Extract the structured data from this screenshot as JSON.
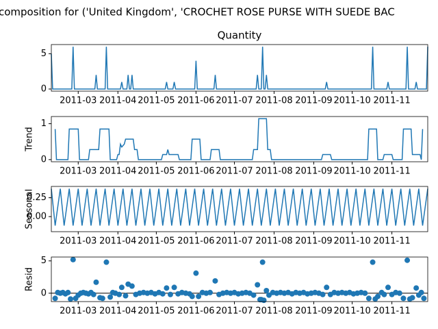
{
  "title": "composition for ('United Kingdom', 'CROCHET ROSE PURSE WITH SUEDE BAC",
  "chart_data": [
    {
      "type": "line",
      "title": "Quantity",
      "color": "#1f77b4",
      "x": [
        "2011-02-08",
        "2011-02-09",
        "2011-02-24",
        "2011-02-25",
        "2011-02-26",
        "2011-03-14",
        "2011-03-15",
        "2011-03-16",
        "2011-03-22",
        "2011-03-23",
        "2011-03-24",
        "2011-04-03",
        "2011-04-04",
        "2011-04-05",
        "2011-04-08",
        "2011-04-09",
        "2011-04-10",
        "2011-04-11",
        "2011-04-12",
        "2011-04-13",
        "2011-05-08",
        "2011-05-09",
        "2011-05-10",
        "2011-05-14",
        "2011-05-15",
        "2011-05-16",
        "2011-05-31",
        "2011-06-01",
        "2011-06-02",
        "2011-06-15",
        "2011-06-16",
        "2011-06-17",
        "2011-07-18",
        "2011-07-19",
        "2011-07-20",
        "2011-07-22",
        "2011-07-23",
        "2011-07-24",
        "2011-07-25",
        "2011-07-26",
        "2011-07-27",
        "2011-09-10",
        "2011-09-11",
        "2011-09-12",
        "2011-10-16",
        "2011-10-17",
        "2011-10-18",
        "2011-10-28",
        "2011-10-29",
        "2011-10-30",
        "2011-11-12",
        "2011-11-13",
        "2011-11-14",
        "2011-11-19",
        "2011-11-20",
        "2011-11-21",
        "2011-11-28",
        "2011-11-29"
      ],
      "values": [
        5,
        0,
        0,
        6,
        0,
        0,
        2,
        0,
        0,
        6,
        0,
        0,
        1,
        0,
        0,
        2,
        0,
        0,
        2,
        0,
        0,
        1,
        0,
        0,
        1,
        0,
        0,
        4,
        0,
        0,
        2,
        0,
        0,
        2,
        0,
        0,
        6,
        0,
        0,
        2,
        0,
        0,
        1,
        0,
        0,
        6,
        0,
        0,
        1,
        0,
        0,
        6,
        0,
        0,
        1,
        0,
        0,
        6
      ],
      "xlim": [
        "2011-02-08",
        "2011-11-29"
      ],
      "xticks": [
        {
          "value": "2011-03-01",
          "label": "2011-03"
        },
        {
          "value": "2011-04-01",
          "label": "2011-04"
        },
        {
          "value": "2011-05-01",
          "label": "2011-05"
        },
        {
          "value": "2011-06-01",
          "label": "2011-06"
        },
        {
          "value": "2011-07-01",
          "label": "2011-07"
        },
        {
          "value": "2011-08-01",
          "label": "2011-08"
        },
        {
          "value": "2011-09-01",
          "label": "2011-09"
        },
        {
          "value": "2011-10-01",
          "label": "2011-10"
        },
        {
          "value": "2011-11-01",
          "label": "2011-11"
        }
      ],
      "ylim": [
        -0.3,
        6.3
      ],
      "yticks": [
        0,
        5
      ]
    },
    {
      "type": "line",
      "ylabel": "Trend",
      "color": "#1f77b4",
      "x": [
        "2011-02-11",
        "2011-02-12",
        "2011-02-21",
        "2011-02-22",
        "2011-03-01",
        "2011-03-02",
        "2011-03-09",
        "2011-03-10",
        "2011-03-17",
        "2011-03-18",
        "2011-03-25",
        "2011-03-26",
        "2011-03-31",
        "2011-04-01",
        "2011-04-02",
        "2011-04-03",
        "2011-04-04",
        "2011-04-06",
        "2011-04-07",
        "2011-04-13",
        "2011-04-14",
        "2011-04-16",
        "2011-04-17",
        "2011-05-05",
        "2011-05-06",
        "2011-05-09",
        "2011-05-10",
        "2011-05-11",
        "2011-05-18",
        "2011-05-19",
        "2011-05-28",
        "2011-05-29",
        "2011-06-04",
        "2011-06-05",
        "2011-06-12",
        "2011-06-13",
        "2011-06-19",
        "2011-06-20",
        "2011-07-15",
        "2011-07-16",
        "2011-07-19",
        "2011-07-20",
        "2011-07-26",
        "2011-07-27",
        "2011-07-29",
        "2011-07-30",
        "2011-09-07",
        "2011-09-08",
        "2011-09-14",
        "2011-09-15",
        "2011-10-13",
        "2011-10-14",
        "2011-10-20",
        "2011-10-21",
        "2011-10-25",
        "2011-10-26",
        "2011-11-01",
        "2011-11-02",
        "2011-11-09",
        "2011-11-10",
        "2011-11-16",
        "2011-11-17",
        "2011-11-23",
        "2011-11-24",
        "2011-11-25"
      ],
      "values": [
        0.85,
        0,
        0,
        0.85,
        0.85,
        0,
        0,
        0.28,
        0.28,
        0.85,
        0.85,
        0,
        0,
        0.14,
        0.14,
        0.43,
        0.35,
        0.43,
        0.57,
        0.57,
        0.28,
        0.28,
        0,
        0,
        0.14,
        0.14,
        0.28,
        0.14,
        0.14,
        0,
        0,
        0.57,
        0.57,
        0,
        0,
        0.28,
        0.28,
        0,
        0,
        0.28,
        0.28,
        1.14,
        1.14,
        0.28,
        0.28,
        0,
        0,
        0.14,
        0.14,
        0,
        0,
        0.85,
        0.85,
        0,
        0,
        0.14,
        0.14,
        0,
        0,
        0.85,
        0.85,
        0.14,
        0.14,
        0,
        0.85
      ],
      "xlim": [
        "2011-02-08",
        "2011-11-29"
      ],
      "xticks": [
        {
          "value": "2011-03-01",
          "label": "2011-03"
        },
        {
          "value": "2011-04-01",
          "label": "2011-04"
        },
        {
          "value": "2011-05-01",
          "label": "2011-05"
        },
        {
          "value": "2011-06-01",
          "label": "2011-06"
        },
        {
          "value": "2011-07-01",
          "label": "2011-07"
        },
        {
          "value": "2011-08-01",
          "label": "2011-08"
        },
        {
          "value": "2011-09-01",
          "label": "2011-09"
        },
        {
          "value": "2011-10-01",
          "label": "2011-10"
        },
        {
          "value": "2011-11-01",
          "label": "2011-11"
        }
      ],
      "ylim": [
        -0.06,
        1.2
      ],
      "yticks": [
        0,
        1
      ]
    },
    {
      "type": "line",
      "ylabel": "Seasonal",
      "color": "#1f77b4",
      "x": [
        "2011-02-08",
        "2011-02-11",
        "2011-02-15",
        "2011-02-18",
        "2011-02-22",
        "2011-02-25",
        "2011-03-01",
        "2011-03-04",
        "2011-03-08",
        "2011-03-11",
        "2011-03-15",
        "2011-03-18",
        "2011-03-22",
        "2011-03-25",
        "2011-03-29",
        "2011-04-01",
        "2011-04-05",
        "2011-04-08",
        "2011-04-12",
        "2011-04-15",
        "2011-04-19",
        "2011-04-22",
        "2011-04-26",
        "2011-04-29",
        "2011-05-03",
        "2011-05-06",
        "2011-05-10",
        "2011-05-13",
        "2011-05-17",
        "2011-05-20",
        "2011-05-24",
        "2011-05-27",
        "2011-05-31",
        "2011-06-03",
        "2011-06-07",
        "2011-06-10",
        "2011-06-14",
        "2011-06-17",
        "2011-06-21",
        "2011-06-24",
        "2011-06-28",
        "2011-07-01",
        "2011-07-05",
        "2011-07-08",
        "2011-07-12",
        "2011-07-15",
        "2011-07-19",
        "2011-07-22",
        "2011-07-26",
        "2011-07-29",
        "2011-08-02",
        "2011-08-05",
        "2011-08-09",
        "2011-08-12",
        "2011-08-16",
        "2011-08-19",
        "2011-08-23",
        "2011-08-26",
        "2011-08-30",
        "2011-09-02",
        "2011-09-06",
        "2011-09-09",
        "2011-09-13",
        "2011-09-16",
        "2011-09-20",
        "2011-09-23",
        "2011-09-27",
        "2011-09-30",
        "2011-10-04",
        "2011-10-07",
        "2011-10-11",
        "2011-10-14",
        "2011-10-18",
        "2011-10-21",
        "2011-10-25",
        "2011-10-28",
        "2011-11-01",
        "2011-11-04",
        "2011-11-08",
        "2011-11-11",
        "2011-11-15",
        "2011-11-18",
        "2011-11-22",
        "2011-11-25",
        "2011-11-29"
      ],
      "values": [
        0.37,
        -0.12,
        0.37,
        -0.12,
        0.37,
        -0.12,
        0.37,
        -0.12,
        0.37,
        -0.12,
        0.37,
        -0.12,
        0.37,
        -0.12,
        0.37,
        -0.12,
        0.37,
        -0.12,
        0.37,
        -0.12,
        0.37,
        -0.12,
        0.37,
        -0.12,
        0.37,
        -0.12,
        0.37,
        -0.12,
        0.37,
        -0.12,
        0.37,
        -0.12,
        0.37,
        -0.12,
        0.37,
        -0.12,
        0.37,
        -0.12,
        0.37,
        -0.12,
        0.37,
        -0.12,
        0.37,
        -0.12,
        0.37,
        -0.12,
        0.37,
        -0.12,
        0.37,
        -0.12,
        0.37,
        -0.12,
        0.37,
        -0.12,
        0.37,
        -0.12,
        0.37,
        -0.12,
        0.37,
        -0.12,
        0.37,
        -0.12,
        0.37,
        -0.12,
        0.37,
        -0.12,
        0.37,
        -0.12,
        0.37,
        -0.12,
        0.37,
        -0.12,
        0.37,
        -0.12,
        0.37,
        -0.12,
        0.37,
        -0.12,
        0.37,
        -0.12,
        0.37,
        -0.12,
        0.37,
        -0.12,
        0.37
      ],
      "xlim": [
        "2011-02-08",
        "2011-11-29"
      ],
      "xticks": [
        {
          "value": "2011-03-01",
          "label": "2011-03"
        },
        {
          "value": "2011-04-01",
          "label": "2011-04"
        },
        {
          "value": "2011-05-01",
          "label": "2011-05"
        },
        {
          "value": "2011-06-01",
          "label": "2011-06"
        },
        {
          "value": "2011-07-01",
          "label": "2011-07"
        },
        {
          "value": "2011-08-01",
          "label": "2011-08"
        },
        {
          "value": "2011-09-01",
          "label": "2011-09"
        },
        {
          "value": "2011-10-01",
          "label": "2011-10"
        },
        {
          "value": "2011-11-01",
          "label": "2011-11"
        }
      ],
      "ylim": [
        -0.2,
        0.4
      ],
      "yticks": [
        {
          "value": 0,
          "label": "0.00"
        },
        {
          "value": 0.25,
          "label": "0.25"
        }
      ]
    },
    {
      "type": "scatter",
      "ylabel": "Resid",
      "color": "#1f77b4",
      "x": [
        "2011-02-11",
        "2011-02-13",
        "2011-02-15",
        "2011-02-17",
        "2011-02-19",
        "2011-02-21",
        "2011-02-23",
        "2011-02-27",
        "2011-03-01",
        "2011-03-03",
        "2011-03-05",
        "2011-03-07",
        "2011-03-09",
        "2011-03-11",
        "2011-03-13",
        "2011-03-18",
        "2011-03-20",
        "2011-03-26",
        "2011-03-28",
        "2011-03-30",
        "2011-04-02",
        "2011-04-07",
        "2011-04-15",
        "2011-04-18",
        "2011-04-21",
        "2011-04-24",
        "2011-04-27",
        "2011-04-30",
        "2011-05-03",
        "2011-05-06",
        "2011-05-12",
        "2011-05-18",
        "2011-05-21",
        "2011-05-24",
        "2011-05-27",
        "2011-05-29",
        "2011-06-03",
        "2011-06-06",
        "2011-06-09",
        "2011-06-12",
        "2011-06-19",
        "2011-06-22",
        "2011-06-25",
        "2011-06-28",
        "2011-07-01",
        "2011-07-04",
        "2011-07-07",
        "2011-07-10",
        "2011-07-13",
        "2011-07-16",
        "2011-07-21",
        "2011-07-22",
        "2011-07-24",
        "2011-07-28",
        "2011-07-31",
        "2011-08-03",
        "2011-08-06",
        "2011-08-09",
        "2011-08-12",
        "2011-08-15",
        "2011-08-18",
        "2011-08-21",
        "2011-08-24",
        "2011-08-27",
        "2011-08-30",
        "2011-09-02",
        "2011-09-05",
        "2011-09-08",
        "2011-09-14",
        "2011-09-17",
        "2011-09-20",
        "2011-09-23",
        "2011-09-26",
        "2011-09-29",
        "2011-10-02",
        "2011-10-05",
        "2011-10-08",
        "2011-10-11",
        "2011-10-14",
        "2011-10-19",
        "2011-10-21",
        "2011-10-24",
        "2011-10-26",
        "2011-11-01",
        "2011-11-04",
        "2011-11-07",
        "2011-11-10",
        "2011-11-15",
        "2011-11-17",
        "2011-11-22",
        "2011-11-24",
        "2011-11-26",
        "2011-02-25",
        "2011-03-15",
        "2011-03-23",
        "2011-04-04",
        "2011-04-09",
        "2011-04-12",
        "2011-05-09",
        "2011-05-15",
        "2011-06-01",
        "2011-06-16",
        "2011-07-19",
        "2011-07-23",
        "2011-07-26",
        "2011-09-11",
        "2011-10-17",
        "2011-10-29",
        "2011-11-13",
        "2011-11-20"
      ],
      "values": [
        -0.8,
        0.1,
        0,
        0.1,
        -0.1,
        0.1,
        -0.9,
        -0.8,
        -0.3,
        0,
        0.1,
        0,
        -0.1,
        0.1,
        -0.2,
        -0.7,
        -0.8,
        -0.6,
        0.1,
        0,
        -0.2,
        -0.4,
        -0.2,
        0,
        0.1,
        0,
        0.1,
        -0.1,
        0.1,
        -0.1,
        -0.2,
        -0.1,
        0.1,
        0,
        -0.1,
        -0.5,
        -0.5,
        0.1,
        0,
        0.1,
        -0.2,
        0,
        0.1,
        0,
        0.1,
        -0.1,
        0,
        0.1,
        0,
        -0.3,
        -1.0,
        -1.0,
        -1.1,
        -0.3,
        0.1,
        0,
        0.1,
        0,
        0.1,
        -0.1,
        0.1,
        0,
        0.1,
        -0.1,
        0,
        0.1,
        0,
        -0.2,
        -0.2,
        0.1,
        0,
        0.1,
        0,
        0.1,
        -0.1,
        0,
        0.1,
        0,
        -0.8,
        -0.9,
        -0.5,
        0.1,
        -0.2,
        -0.2,
        0.1,
        0,
        -0.8,
        -0.9,
        -0.7,
        -0.3,
        0.1,
        -0.8,
        5.2,
        1.7,
        4.8,
        0.9,
        1.4,
        1.1,
        0.8,
        0.9,
        3.1,
        1.9,
        1.3,
        4.8,
        0.4,
        0.9,
        4.8,
        0.9,
        5.1,
        0.8
      ],
      "xlim": [
        "2011-02-08",
        "2011-11-29"
      ],
      "xticks": [
        {
          "value": "2011-03-01",
          "label": "2011-03"
        },
        {
          "value": "2011-04-01",
          "label": "2011-04"
        },
        {
          "value": "2011-05-01",
          "label": "2011-05"
        },
        {
          "value": "2011-06-01",
          "label": "2011-06"
        },
        {
          "value": "2011-07-01",
          "label": "2011-07"
        },
        {
          "value": "2011-08-01",
          "label": "2011-08"
        },
        {
          "value": "2011-09-01",
          "label": "2011-09"
        },
        {
          "value": "2011-10-01",
          "label": "2011-10"
        },
        {
          "value": "2011-11-01",
          "label": "2011-11"
        }
      ],
      "ylim": [
        -1.3,
        5.6
      ],
      "yticks": [
        0,
        5
      ]
    }
  ]
}
